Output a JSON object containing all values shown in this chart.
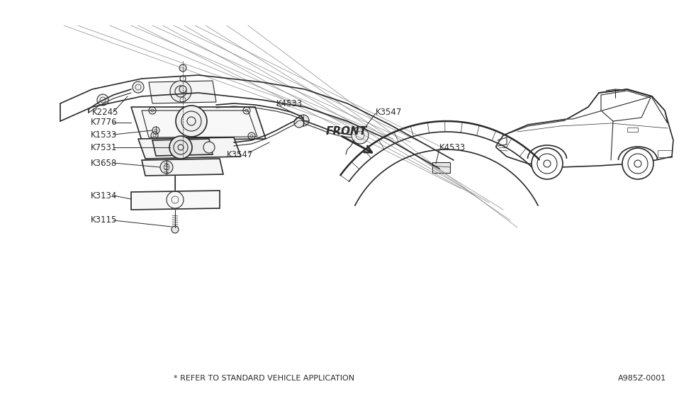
{
  "bg_color": "#ffffff",
  "line_color": "#2a2a2a",
  "fig_width": 9.75,
  "fig_height": 5.66,
  "dpi": 100,
  "footer_text": "* REFER TO STANDARD VEHICLE APPLICATION",
  "ref_code": "A985Z-0001",
  "front_label": "FRONT"
}
